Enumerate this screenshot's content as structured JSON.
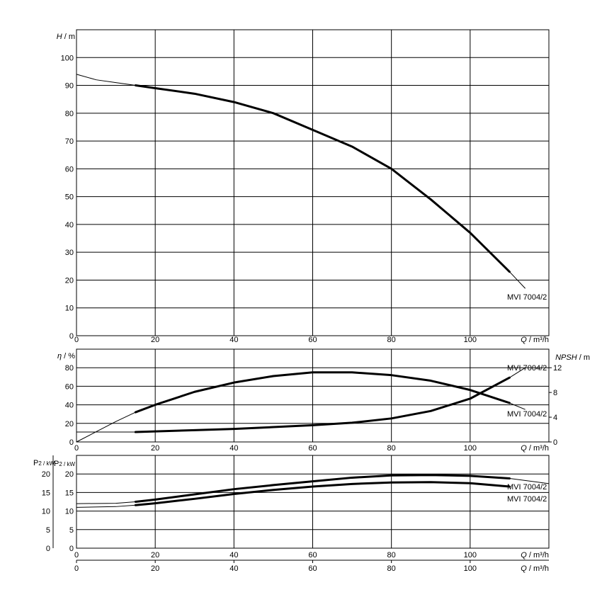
{
  "chart_data": [
    {
      "type": "line",
      "panel": "head",
      "x_unit_label": {
        "sym": "Q",
        "unit": " / m³/h"
      },
      "y_unit_label": {
        "sym": "H",
        "unit": " / m"
      },
      "xlim": [
        0,
        120
      ],
      "ylim": [
        0,
        110
      ],
      "x_ticks": [
        "0",
        "20",
        "40",
        "60",
        "80",
        "100"
      ],
      "y_ticks": [
        "0",
        "10",
        "20",
        "30",
        "40",
        "50",
        "60",
        "70",
        "80",
        "90",
        "100"
      ],
      "grid": true,
      "series": [
        {
          "name": "MVI 7004/2",
          "x": [
            0,
            5,
            10,
            15,
            20,
            30,
            40,
            50,
            60,
            70,
            80,
            90,
            100,
            110,
            114
          ],
          "y": [
            94,
            92,
            91,
            90,
            89,
            87,
            84,
            80,
            74,
            68,
            60,
            49,
            37,
            23,
            17
          ]
        }
      ]
    },
    {
      "type": "line",
      "panel": "efficiency_npsh",
      "x_unit_label": {
        "sym": "Q",
        "unit": " / m³/h"
      },
      "y_unit_label": {
        "sym": "η",
        "unit": " / %"
      },
      "y2_unit_label": {
        "sym": "NPSH",
        "unit": " / m"
      },
      "xlim": [
        0,
        120
      ],
      "ylim": [
        0,
        100
      ],
      "y2lim": [
        0,
        15
      ],
      "x_ticks": [
        "0",
        "20",
        "40",
        "60",
        "80",
        "100"
      ],
      "y_ticks": [
        "0",
        "20",
        "40",
        "60",
        "80"
      ],
      "y2_ticks": [
        "0",
        "4",
        "8",
        "12"
      ],
      "grid": true,
      "series": [
        {
          "name": "MVI 7004/2",
          "axis": "left",
          "x": [
            0,
            5,
            10,
            15,
            20,
            30,
            40,
            50,
            60,
            70,
            80,
            90,
            100,
            110,
            114
          ],
          "y": [
            0,
            11,
            22,
            32,
            40,
            54,
            64,
            71,
            75,
            75,
            72,
            66,
            56,
            42,
            35
          ]
        },
        {
          "name": "MVI 7004/2",
          "axis": "right",
          "x": [
            0,
            15,
            20,
            30,
            40,
            50,
            60,
            70,
            80,
            90,
            100,
            110,
            114
          ],
          "y": [
            1.6,
            1.6,
            1.7,
            1.9,
            2.1,
            2.4,
            2.7,
            3.1,
            3.8,
            5.0,
            7.0,
            10.4,
            12.0
          ]
        }
      ]
    },
    {
      "type": "line",
      "panel": "power",
      "x_unit_label": {
        "sym": "Q",
        "unit": " / m³/h"
      },
      "y_unit_label": {
        "sym": "P",
        "sub": "2 / kW"
      },
      "xlim": [
        0,
        120
      ],
      "ylim": [
        0,
        25
      ],
      "x_ticks": [
        "0",
        "20",
        "40",
        "60",
        "80",
        "100"
      ],
      "y_ticks": [
        "0",
        "5",
        "10",
        "15",
        "20"
      ],
      "outer_y_ticks": [
        "0",
        "5",
        "10",
        "15",
        "20"
      ],
      "grid": true,
      "series": [
        {
          "name": "MVI 7004/2",
          "x": [
            0,
            10,
            15,
            20,
            30,
            40,
            50,
            60,
            70,
            80,
            90,
            100,
            110,
            120
          ],
          "y": [
            12,
            12.1,
            12.5,
            13.1,
            14.5,
            15.9,
            17.0,
            18.0,
            19.0,
            19.6,
            19.7,
            19.5,
            18.8,
            17.4
          ]
        },
        {
          "name": "MVI 7004/2",
          "x": [
            0,
            10,
            15,
            20,
            30,
            40,
            50,
            60,
            70,
            80,
            90,
            100,
            110
          ],
          "y": [
            11,
            11.2,
            11.6,
            12.1,
            13.3,
            14.6,
            15.7,
            16.6,
            17.3,
            17.7,
            17.8,
            17.5,
            16.6
          ]
        }
      ]
    }
  ]
}
